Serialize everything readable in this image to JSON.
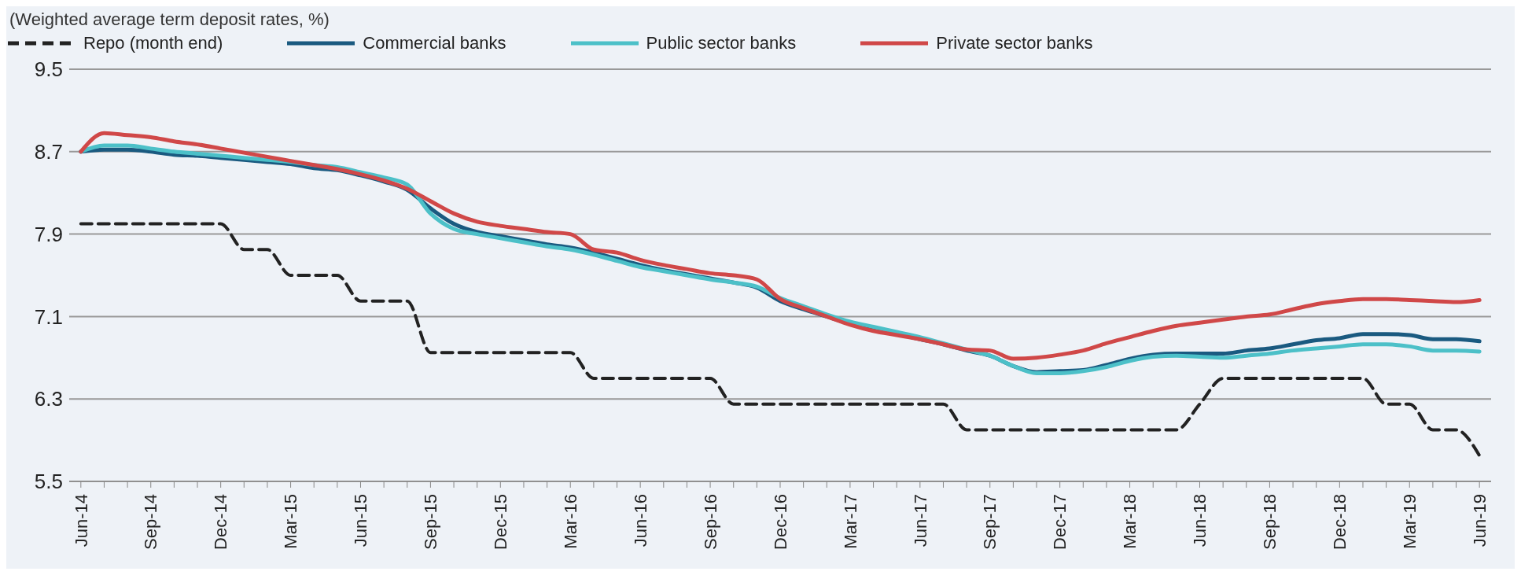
{
  "chart_data": {
    "type": "line",
    "title": "(Weighted average term deposit rates, %)",
    "categories": [
      "Jun-14",
      null,
      null,
      "Sep-14",
      null,
      null,
      "Dec-14",
      null,
      null,
      "Mar-15",
      null,
      null,
      "Jun-15",
      null,
      null,
      "Sep-15",
      null,
      null,
      "Dec-15",
      null,
      null,
      "Mar-16",
      null,
      null,
      "Jun-16",
      null,
      null,
      "Sep-16",
      null,
      null,
      "Dec-16",
      null,
      null,
      "Mar-17",
      null,
      null,
      "Jun-17",
      null,
      null,
      "Sep-17",
      null,
      null,
      "Dec-17",
      null,
      null,
      "Mar-18",
      null,
      null,
      "Jun-18",
      null,
      null,
      "Sep-18",
      null,
      null,
      "Dec-18",
      null,
      null,
      "Mar-19",
      null,
      null,
      "Jun-19"
    ],
    "series": [
      {
        "name": "Repo (month end)",
        "color": "#222222",
        "line_style": "dashed",
        "values": [
          8.0,
          8.0,
          8.0,
          8.0,
          8.0,
          8.0,
          8.0,
          7.75,
          7.75,
          7.5,
          7.5,
          7.5,
          7.25,
          7.25,
          7.25,
          6.75,
          6.75,
          6.75,
          6.75,
          6.75,
          6.75,
          6.75,
          6.5,
          6.5,
          6.5,
          6.5,
          6.5,
          6.5,
          6.25,
          6.25,
          6.25,
          6.25,
          6.25,
          6.25,
          6.25,
          6.25,
          6.25,
          6.25,
          6.0,
          6.0,
          6.0,
          6.0,
          6.0,
          6.0,
          6.0,
          6.0,
          6.0,
          6.0,
          6.25,
          6.5,
          6.5,
          6.5,
          6.5,
          6.5,
          6.5,
          6.5,
          6.25,
          6.25,
          6.0,
          6.0,
          5.75
        ]
      },
      {
        "name": "Commercial banks",
        "color": "#1a5a80",
        "line_style": "solid",
        "values": [
          8.7,
          8.72,
          8.72,
          8.7,
          8.67,
          8.66,
          8.64,
          8.62,
          8.6,
          8.58,
          8.54,
          8.52,
          8.47,
          8.41,
          8.33,
          8.15,
          8.0,
          7.92,
          7.88,
          7.84,
          7.8,
          7.77,
          7.72,
          7.66,
          7.6,
          7.55,
          7.51,
          7.47,
          7.43,
          7.38,
          7.25,
          7.17,
          7.1,
          7.03,
          6.98,
          6.93,
          6.88,
          6.83,
          6.77,
          6.72,
          6.62,
          6.56,
          6.57,
          6.58,
          6.63,
          6.69,
          6.73,
          6.74,
          6.74,
          6.74,
          6.77,
          6.79,
          6.83,
          6.87,
          6.89,
          6.93,
          6.93,
          6.92,
          6.88,
          6.88,
          6.86
        ]
      },
      {
        "name": "Public sector banks",
        "color": "#4cc0c8",
        "line_style": "solid",
        "values": [
          8.7,
          8.76,
          8.76,
          8.73,
          8.7,
          8.68,
          8.66,
          8.64,
          8.62,
          8.6,
          8.57,
          8.55,
          8.5,
          8.45,
          8.38,
          8.1,
          7.95,
          7.9,
          7.86,
          7.82,
          7.78,
          7.75,
          7.7,
          7.64,
          7.58,
          7.54,
          7.5,
          7.46,
          7.43,
          7.39,
          7.28,
          7.2,
          7.12,
          7.05,
          7.0,
          6.95,
          6.9,
          6.84,
          6.78,
          6.72,
          6.62,
          6.55,
          6.55,
          6.57,
          6.61,
          6.67,
          6.71,
          6.72,
          6.71,
          6.7,
          6.72,
          6.74,
          6.77,
          6.79,
          6.81,
          6.83,
          6.83,
          6.81,
          6.77,
          6.77,
          6.76
        ]
      },
      {
        "name": "Private sector banks",
        "color": "#d04848",
        "line_style": "solid",
        "values": [
          8.7,
          8.88,
          8.86,
          8.84,
          8.8,
          8.77,
          8.73,
          8.69,
          8.65,
          8.61,
          8.57,
          8.53,
          8.48,
          8.42,
          8.34,
          8.22,
          8.1,
          8.02,
          7.98,
          7.95,
          7.92,
          7.9,
          7.75,
          7.72,
          7.65,
          7.6,
          7.56,
          7.52,
          7.5,
          7.46,
          7.27,
          7.18,
          7.1,
          7.02,
          6.96,
          6.92,
          6.88,
          6.83,
          6.78,
          6.77,
          6.69,
          6.7,
          6.73,
          6.77,
          6.84,
          6.9,
          6.96,
          7.01,
          7.04,
          7.07,
          7.1,
          7.12,
          7.17,
          7.22,
          7.25,
          7.27,
          7.27,
          7.26,
          7.25,
          7.24,
          7.26
        ]
      }
    ],
    "ylim": [
      5.5,
      9.5
    ],
    "yticks": [
      5.5,
      6.3,
      7.1,
      7.9,
      8.7,
      9.5
    ],
    "grid": "y",
    "legend": "top left",
    "marker": "none"
  }
}
